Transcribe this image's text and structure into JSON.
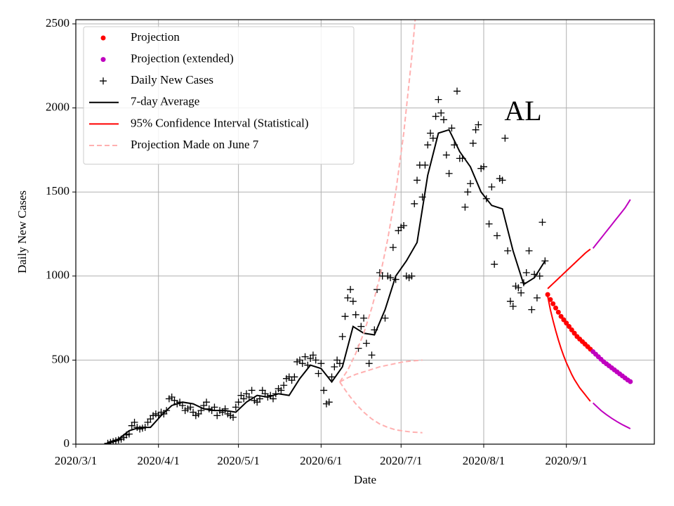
{
  "chart_data": {
    "type": "line",
    "annotation": "AL",
    "xlabel": "Date",
    "ylabel": "Daily New Cases",
    "xlim": [
      "2020-03-01",
      "2020-10-04"
    ],
    "xticks": [
      {
        "value": "2020-03-01",
        "label": "2020/3/1"
      },
      {
        "value": "2020-04-01",
        "label": "2020/4/1"
      },
      {
        "value": "2020-05-01",
        "label": "2020/5/1"
      },
      {
        "value": "2020-06-01",
        "label": "2020/6/1"
      },
      {
        "value": "2020-07-01",
        "label": "2020/7/1"
      },
      {
        "value": "2020-08-01",
        "label": "2020/8/1"
      },
      {
        "value": "2020-09-01",
        "label": "2020/9/1"
      }
    ],
    "ylim": [
      0,
      2525
    ],
    "yticks": [
      0,
      500,
      1000,
      1500,
      2000,
      2500
    ],
    "grid": true,
    "legend": "upper left",
    "series": [
      {
        "name": "Projection",
        "color": "#ff0000",
        "marker": "dot",
        "x": [
          "2020-08-25",
          "2020-08-26",
          "2020-08-27",
          "2020-08-28",
          "2020-08-29",
          "2020-08-30",
          "2020-08-31",
          "2020-09-01",
          "2020-09-02",
          "2020-09-03",
          "2020-09-04",
          "2020-09-05",
          "2020-09-06",
          "2020-09-07",
          "2020-09-08",
          "2020-09-09",
          "2020-09-10"
        ],
        "values": [
          890,
          860,
          835,
          810,
          785,
          760,
          740,
          720,
          700,
          680,
          660,
          640,
          625,
          610,
          595,
          580,
          565
        ]
      },
      {
        "name": "Projection (extended)",
        "color": "#bf00bf",
        "marker": "dot",
        "x": [
          "2020-09-11",
          "2020-09-12",
          "2020-09-13",
          "2020-09-14",
          "2020-09-15",
          "2020-09-16",
          "2020-09-17",
          "2020-09-18",
          "2020-09-19",
          "2020-09-20",
          "2020-09-21",
          "2020-09-22",
          "2020-09-23",
          "2020-09-24",
          "2020-09-25"
        ],
        "values": [
          550,
          535,
          520,
          505,
          490,
          478,
          466,
          454,
          442,
          430,
          418,
          406,
          394,
          382,
          372
        ]
      },
      {
        "name": "Daily New Cases",
        "color": "#000000",
        "marker": "plus",
        "x": [
          "2020-03-13",
          "2020-03-14",
          "2020-03-15",
          "2020-03-16",
          "2020-03-17",
          "2020-03-18",
          "2020-03-19",
          "2020-03-20",
          "2020-03-21",
          "2020-03-22",
          "2020-03-23",
          "2020-03-24",
          "2020-03-25",
          "2020-03-26",
          "2020-03-27",
          "2020-03-28",
          "2020-03-29",
          "2020-03-30",
          "2020-03-31",
          "2020-04-01",
          "2020-04-02",
          "2020-04-03",
          "2020-04-04",
          "2020-04-05",
          "2020-04-06",
          "2020-04-07",
          "2020-04-08",
          "2020-04-09",
          "2020-04-10",
          "2020-04-11",
          "2020-04-12",
          "2020-04-13",
          "2020-04-14",
          "2020-04-15",
          "2020-04-16",
          "2020-04-17",
          "2020-04-18",
          "2020-04-19",
          "2020-04-20",
          "2020-04-21",
          "2020-04-22",
          "2020-04-23",
          "2020-04-24",
          "2020-04-25",
          "2020-04-26",
          "2020-04-27",
          "2020-04-28",
          "2020-04-29",
          "2020-04-30",
          "2020-05-01",
          "2020-05-02",
          "2020-05-03",
          "2020-05-04",
          "2020-05-05",
          "2020-05-06",
          "2020-05-07",
          "2020-05-08",
          "2020-05-09",
          "2020-05-10",
          "2020-05-11",
          "2020-05-12",
          "2020-05-13",
          "2020-05-14",
          "2020-05-15",
          "2020-05-16",
          "2020-05-17",
          "2020-05-18",
          "2020-05-19",
          "2020-05-20",
          "2020-05-21",
          "2020-05-22",
          "2020-05-23",
          "2020-05-24",
          "2020-05-25",
          "2020-05-26",
          "2020-05-27",
          "2020-05-28",
          "2020-05-29",
          "2020-05-30",
          "2020-05-31",
          "2020-06-01",
          "2020-06-02",
          "2020-06-03",
          "2020-06-04",
          "2020-06-05",
          "2020-06-06",
          "2020-06-07",
          "2020-06-08",
          "2020-06-09",
          "2020-06-10",
          "2020-06-11",
          "2020-06-12",
          "2020-06-13",
          "2020-06-14",
          "2020-06-15",
          "2020-06-16",
          "2020-06-17",
          "2020-06-18",
          "2020-06-19",
          "2020-06-20",
          "2020-06-21",
          "2020-06-22",
          "2020-06-23",
          "2020-06-24",
          "2020-06-25",
          "2020-06-26",
          "2020-06-27",
          "2020-06-28",
          "2020-06-29",
          "2020-06-30",
          "2020-07-01",
          "2020-07-02",
          "2020-07-03",
          "2020-07-04",
          "2020-07-05",
          "2020-07-06",
          "2020-07-07",
          "2020-07-08",
          "2020-07-09",
          "2020-07-10",
          "2020-07-11",
          "2020-07-12",
          "2020-07-13",
          "2020-07-14",
          "2020-07-15",
          "2020-07-16",
          "2020-07-17",
          "2020-07-18",
          "2020-07-19",
          "2020-07-20",
          "2020-07-21",
          "2020-07-22",
          "2020-07-23",
          "2020-07-24",
          "2020-07-25",
          "2020-07-26",
          "2020-07-27",
          "2020-07-28",
          "2020-07-29",
          "2020-07-30",
          "2020-07-31",
          "2020-08-01",
          "2020-08-02",
          "2020-08-03",
          "2020-08-04",
          "2020-08-05",
          "2020-08-06",
          "2020-08-07",
          "2020-08-08",
          "2020-08-09",
          "2020-08-10",
          "2020-08-11",
          "2020-08-12",
          "2020-08-13",
          "2020-08-14",
          "2020-08-15",
          "2020-08-16",
          "2020-08-17",
          "2020-08-18",
          "2020-08-19",
          "2020-08-20",
          "2020-08-21",
          "2020-08-22",
          "2020-08-23",
          "2020-08-24"
        ],
        "values": [
          5,
          10,
          15,
          20,
          25,
          30,
          40,
          55,
          60,
          110,
          130,
          100,
          90,
          95,
          100,
          130,
          150,
          170,
          180,
          170,
          190,
          180,
          200,
          270,
          280,
          260,
          240,
          250,
          230,
          200,
          210,
          220,
          190,
          170,
          180,
          200,
          230,
          250,
          210,
          200,
          220,
          170,
          200,
          190,
          210,
          180,
          170,
          160,
          220,
          250,
          290,
          270,
          300,
          280,
          320,
          260,
          250,
          270,
          320,
          300,
          280,
          290,
          270,
          300,
          330,
          320,
          350,
          390,
          400,
          380,
          400,
          490,
          500,
          480,
          520,
          470,
          510,
          530,
          500,
          420,
          480,
          320,
          240,
          250,
          400,
          460,
          500,
          480,
          640,
          760,
          870,
          920,
          850,
          770,
          570,
          700,
          750,
          600,
          480,
          530,
          680,
          920,
          1020,
          1000,
          750,
          1000,
          990,
          1170,
          980,
          1270,
          1290,
          1300,
          1000,
          990,
          1000,
          1430,
          1570,
          1660,
          1470,
          1660,
          1780,
          1850,
          1820,
          1950,
          2050,
          1970,
          1930,
          1720,
          1610,
          1880,
          1780,
          2100,
          1700,
          1700,
          1410,
          1500,
          1550,
          1790,
          1870,
          1900,
          1640,
          1650,
          1460,
          1310,
          1530,
          1070,
          1240,
          1580,
          1570,
          1820,
          1150,
          850,
          820,
          940,
          930,
          900,
          960,
          1020,
          1150,
          800,
          1010,
          870,
          1000,
          1320,
          1090
        ]
      },
      {
        "name": "7-day Average",
        "color": "#000000",
        "line": "solid",
        "x": [
          "2020-03-13",
          "2020-03-17",
          "2020-03-21",
          "2020-03-25",
          "2020-03-29",
          "2020-04-02",
          "2020-04-06",
          "2020-04-10",
          "2020-04-14",
          "2020-04-18",
          "2020-04-22",
          "2020-04-26",
          "2020-04-30",
          "2020-05-04",
          "2020-05-08",
          "2020-05-12",
          "2020-05-16",
          "2020-05-20",
          "2020-05-24",
          "2020-05-28",
          "2020-06-01",
          "2020-06-05",
          "2020-06-09",
          "2020-06-13",
          "2020-06-17",
          "2020-06-21",
          "2020-06-25",
          "2020-06-29",
          "2020-07-03",
          "2020-07-07",
          "2020-07-11",
          "2020-07-15",
          "2020-07-19",
          "2020-07-23",
          "2020-07-27",
          "2020-07-31",
          "2020-08-04",
          "2020-08-08",
          "2020-08-12",
          "2020-08-16",
          "2020-08-20",
          "2020-08-24"
        ],
        "values": [
          10,
          30,
          80,
          100,
          100,
          170,
          230,
          250,
          240,
          210,
          200,
          200,
          190,
          250,
          290,
          280,
          300,
          290,
          390,
          470,
          450,
          370,
          460,
          700,
          660,
          650,
          800,
          1000,
          1090,
          1200,
          1600,
          1850,
          1870,
          1740,
          1650,
          1500,
          1420,
          1400,
          1150,
          950,
          990,
          1090
        ]
      },
      {
        "name": "95% Confidence Interval (Statistical)",
        "color": "#ff0000",
        "line": "solid",
        "x": [
          "2020-08-25",
          "2020-08-26",
          "2020-08-27",
          "2020-08-28",
          "2020-08-29",
          "2020-08-30",
          "2020-08-31",
          "2020-09-01",
          "2020-09-02",
          "2020-09-03",
          "2020-09-04",
          "2020-09-05",
          "2020-09-06",
          "2020-09-07",
          "2020-09-08",
          "2020-09-09",
          "2020-09-10"
        ],
        "upper": [
          925,
          940,
          955,
          970,
          985,
          1000,
          1015,
          1030,
          1045,
          1060,
          1075,
          1090,
          1105,
          1120,
          1135,
          1148,
          1160
        ],
        "lower": [
          880,
          800,
          735,
          675,
          620,
          570,
          525,
          485,
          450,
          415,
          385,
          360,
          335,
          315,
          295,
          275,
          255
        ]
      },
      {
        "color": "#bf00bf",
        "line": "solid",
        "x": [
          "2020-09-11",
          "2020-09-12",
          "2020-09-13",
          "2020-09-14",
          "2020-09-15",
          "2020-09-16",
          "2020-09-17",
          "2020-09-18",
          "2020-09-19",
          "2020-09-20",
          "2020-09-21",
          "2020-09-22",
          "2020-09-23",
          "2020-09-24",
          "2020-09-25"
        ],
        "upper": [
          1165,
          1185,
          1205,
          1225,
          1245,
          1265,
          1285,
          1305,
          1325,
          1345,
          1365,
          1385,
          1405,
          1430,
          1455
        ],
        "lower": [
          245,
          230,
          215,
          200,
          188,
          176,
          165,
          154,
          144,
          134,
          125,
          116,
          108,
          100,
          92
        ]
      },
      {
        "name": "Projection Made on June 7",
        "color": "#ffb0b0",
        "line": "dashed",
        "x": [
          "2020-06-08",
          "2020-06-11",
          "2020-06-14",
          "2020-06-17",
          "2020-06-20",
          "2020-06-23",
          "2020-06-26",
          "2020-06-29",
          "2020-07-02",
          "2020-07-05",
          "2020-07-09"
        ],
        "values": [
          370,
          395,
          415,
          430,
          445,
          460,
          470,
          480,
          490,
          495,
          500
        ],
        "upper": [
          370,
          440,
          540,
          660,
          810,
          990,
          1220,
          1500,
          1850,
          2300,
          3000
        ],
        "lower": [
          370,
          300,
          240,
          190,
          150,
          120,
          100,
          85,
          78,
          72,
          68
        ]
      }
    ]
  }
}
